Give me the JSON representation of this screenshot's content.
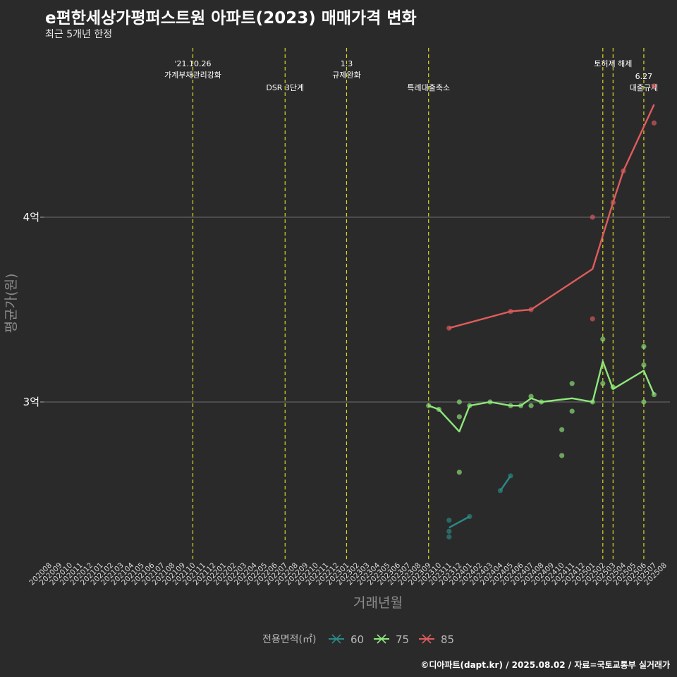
{
  "title": "e편한세상가평퍼스트원 아파트(2023) 매매가격 변화",
  "subtitle": "최근 5개년 한정",
  "caption": "©디아파트(dapt.kr) / 2025.08.02 / 자료=국토교통부 실거래가",
  "chart_data": {
    "type": "line",
    "xlabel": "거래년월",
    "ylabel": "평균가(원)",
    "categories": [
      "202008",
      "202009",
      "202010",
      "202011",
      "202012",
      "202101",
      "202102",
      "202103",
      "202104",
      "202105",
      "202106",
      "202107",
      "202108",
      "202109",
      "202110",
      "202111",
      "202112",
      "202201",
      "202202",
      "202203",
      "202204",
      "202205",
      "202206",
      "202207",
      "202208",
      "202209",
      "202210",
      "202211",
      "202212",
      "202301",
      "202302",
      "202303",
      "202304",
      "202305",
      "202306",
      "202307",
      "202308",
      "202309",
      "202310",
      "202311",
      "202312",
      "202401",
      "202402",
      "202403",
      "202404",
      "202405",
      "202406",
      "202407",
      "202408",
      "202409",
      "202410",
      "202411",
      "202412",
      "202501",
      "202502",
      "202503",
      "202504",
      "202505",
      "202506",
      "202507",
      "202508"
    ],
    "y_ticks": [
      {
        "value": 3.0,
        "label": "3억"
      },
      {
        "value": 4.0,
        "label": "4억"
      }
    ],
    "ylim": [
      2.15,
      4.65
    ],
    "grid": "horizontal",
    "legend_title": "전용면적(㎡)",
    "legend_position": "bottom",
    "series": [
      {
        "name": "60",
        "color": "#2a8a86",
        "line": [
          [
            "202311",
            2.32
          ],
          [
            "202401",
            2.38
          ]
        ],
        "points": [
          [
            "202311",
            2.36
          ],
          [
            "202311",
            2.3
          ],
          [
            "202311",
            2.27
          ],
          [
            "202401",
            2.38
          ],
          [
            "202404",
            2.52
          ],
          [
            "202405",
            2.6
          ]
        ],
        "line2": [
          [
            "202404",
            2.52
          ],
          [
            "202405",
            2.6
          ]
        ]
      },
      {
        "name": "75",
        "color": "#8ee87a",
        "line": [
          [
            "202309",
            2.98
          ],
          [
            "202310",
            2.96
          ],
          [
            "202312",
            2.84
          ],
          [
            "202401",
            2.98
          ],
          [
            "202403",
            3.0
          ],
          [
            "202405",
            2.98
          ],
          [
            "202406",
            2.98
          ],
          [
            "202407",
            3.02
          ],
          [
            "202408",
            3.0
          ],
          [
            "202411",
            3.02
          ],
          [
            "202501",
            3.0
          ],
          [
            "202502",
            3.22
          ],
          [
            "202503",
            3.07
          ],
          [
            "202506",
            3.17
          ],
          [
            "202507",
            3.04
          ]
        ],
        "points": [
          [
            "202309",
            2.98
          ],
          [
            "202310",
            2.96
          ],
          [
            "202312",
            3.0
          ],
          [
            "202312",
            2.92
          ],
          [
            "202312",
            2.62
          ],
          [
            "202401",
            2.98
          ],
          [
            "202403",
            3.0
          ],
          [
            "202405",
            2.98
          ],
          [
            "202406",
            2.98
          ],
          [
            "202407",
            3.03
          ],
          [
            "202407",
            2.98
          ],
          [
            "202408",
            3.0
          ],
          [
            "202410",
            2.85
          ],
          [
            "202410",
            2.71
          ],
          [
            "202411",
            3.1
          ],
          [
            "202411",
            2.95
          ],
          [
            "202501",
            3.0
          ],
          [
            "202502",
            3.34
          ],
          [
            "202502",
            3.1
          ],
          [
            "202503",
            3.08
          ],
          [
            "202506",
            3.3
          ],
          [
            "202506",
            3.2
          ],
          [
            "202506",
            3.0
          ],
          [
            "202507",
            3.04
          ]
        ]
      },
      {
        "name": "85",
        "color": "#e05c5c",
        "line": [
          [
            "202311",
            3.4
          ],
          [
            "202405",
            3.49
          ],
          [
            "202407",
            3.5
          ],
          [
            "202501",
            3.72
          ],
          [
            "202503",
            4.08
          ],
          [
            "202504",
            4.25
          ],
          [
            "202507",
            4.61
          ]
        ],
        "points": [
          [
            "202311",
            3.4
          ],
          [
            "202405",
            3.49
          ],
          [
            "202407",
            3.5
          ],
          [
            "202501",
            4.0
          ],
          [
            "202501",
            3.45
          ],
          [
            "202503",
            4.08
          ],
          [
            "202504",
            4.25
          ],
          [
            "202507",
            4.71
          ],
          [
            "202507",
            4.51
          ]
        ]
      }
    ],
    "annotations": [
      {
        "x": "202110",
        "lines": [
          "'21.10.26",
          "가계부채관리강화"
        ],
        "row": 0
      },
      {
        "x": "202207",
        "lines": [
          "DSR 3단계"
        ],
        "row": 1
      },
      {
        "x": "202301",
        "lines": [
          "1.3",
          "규제완화"
        ],
        "row": 0
      },
      {
        "x": "202309",
        "lines": [
          "특례대출축소"
        ],
        "row": 1
      },
      {
        "x": "202502",
        "lines": [],
        "row": 0
      },
      {
        "x": "202503",
        "lines": [
          "토허제 해제"
        ],
        "row": 0
      },
      {
        "x": "202506",
        "lines": [
          "6.27",
          "대출규제"
        ],
        "row": 1
      }
    ]
  }
}
